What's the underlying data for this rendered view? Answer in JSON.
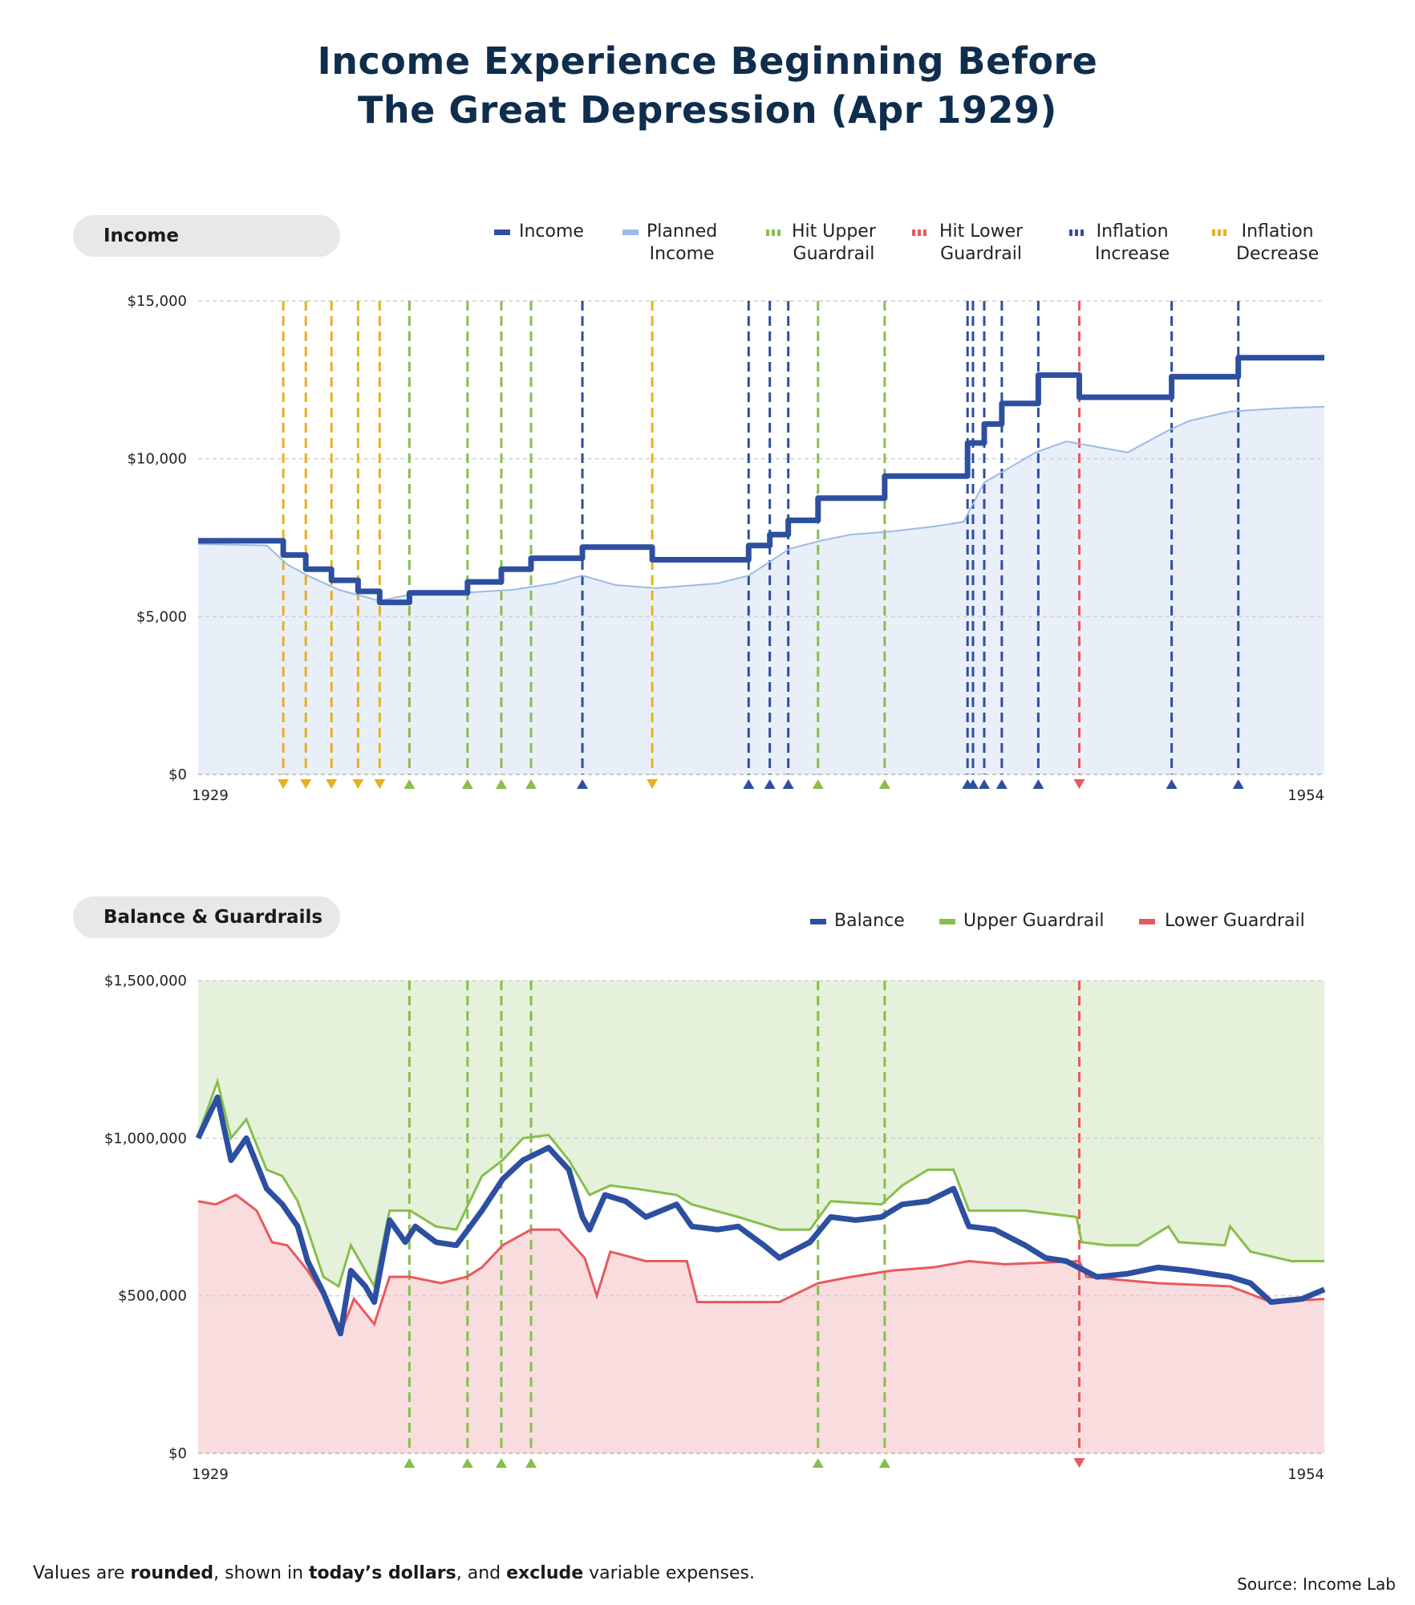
{
  "title_line1": "Income Experience Beginning Before",
  "title_line2": "The Great Depression (Apr 1929)",
  "footnote": {
    "p1": "Values are ",
    "b1": "rounded",
    "p2": ", shown in ",
    "b2": "today’s dollars",
    "p3": ", and ",
    "b3": "exclude",
    "p4": " variable expenses."
  },
  "source": "Source: Income Lab",
  "colors": {
    "income": "#2d4fa0",
    "planned": "#9cbbe4",
    "planned_fill": "#e8eff9",
    "upper": "#86bf4b",
    "lower": "#e8595e",
    "inflation_increase": "#2d4fa0",
    "inflation_decrease": "#e5b11f",
    "upper_zone": "#e5f1db",
    "lower_zone": "#f9dcde"
  },
  "chart_data": [
    {
      "type": "line",
      "panel_label": "Income",
      "legend": [
        "Income",
        "Planned Income",
        "Hit Upper Guardrail",
        "Hit Lower Guardrail",
        "Inflation Increase",
        "Inflation Decrease"
      ],
      "legend_lines": [
        [
          "Income",
          ""
        ],
        [
          "Planned",
          "Income"
        ],
        [
          "Hit Upper",
          "Guardrail"
        ],
        [
          "Hit Lower",
          "Guardrail"
        ],
        [
          "Inflation",
          "Increase"
        ],
        [
          "Inflation",
          "Decrease"
        ]
      ],
      "xlim": [
        1929.25,
        1954.25
      ],
      "x_tick_labels": [
        "1929",
        "1954"
      ],
      "ylim": [
        0,
        15000
      ],
      "y_ticks": [
        0,
        5000,
        10000,
        15000
      ],
      "y_tick_labels": [
        "$0",
        "$5,000",
        "$10,000",
        "$15,000"
      ],
      "grid": true,
      "income_steps": [
        [
          1929.25,
          7400
        ],
        [
          1931.14,
          6950
        ],
        [
          1931.64,
          6500
        ],
        [
          1932.21,
          6150
        ],
        [
          1932.8,
          5800
        ],
        [
          1933.28,
          5450
        ],
        [
          1933.94,
          5750
        ],
        [
          1935.23,
          6100
        ],
        [
          1935.98,
          6500
        ],
        [
          1936.64,
          6850
        ],
        [
          1937.78,
          7200
        ],
        [
          1939.33,
          6800
        ],
        [
          1941.47,
          7250
        ],
        [
          1941.94,
          7600
        ],
        [
          1942.35,
          8050
        ],
        [
          1943.01,
          8750
        ],
        [
          1944.49,
          9450
        ],
        [
          1946.33,
          10500
        ],
        [
          1946.7,
          11100
        ],
        [
          1947.09,
          11750
        ],
        [
          1947.9,
          12650
        ],
        [
          1948.81,
          11950
        ],
        [
          1950.86,
          12600
        ],
        [
          1952.34,
          13200
        ],
        [
          1954.25,
          13200
        ]
      ],
      "planned_income": [
        [
          1929.25,
          7300
        ],
        [
          1930.77,
          7250
        ],
        [
          1931.23,
          6650
        ],
        [
          1931.68,
          6300
        ],
        [
          1932.37,
          5850
        ],
        [
          1933.28,
          5500
        ],
        [
          1933.96,
          5700
        ],
        [
          1935.1,
          5750
        ],
        [
          1936.24,
          5850
        ],
        [
          1937.15,
          6050
        ],
        [
          1937.78,
          6300
        ],
        [
          1938.51,
          6000
        ],
        [
          1939.42,
          5900
        ],
        [
          1940.78,
          6050
        ],
        [
          1941.47,
          6300
        ],
        [
          1942.38,
          7150
        ],
        [
          1943.06,
          7400
        ],
        [
          1943.74,
          7600
        ],
        [
          1944.65,
          7700
        ],
        [
          1945.56,
          7850
        ],
        [
          1946.24,
          8000
        ],
        [
          1946.7,
          9250
        ],
        [
          1947.84,
          10200
        ],
        [
          1948.52,
          10550
        ],
        [
          1949.88,
          10200
        ],
        [
          1950.79,
          10900
        ],
        [
          1951.25,
          11200
        ],
        [
          1952.16,
          11500
        ],
        [
          1953.29,
          11600
        ],
        [
          1954.25,
          11650
        ]
      ],
      "events": {
        "hit_upper_guardrail": [
          1933.94,
          1935.23,
          1935.98,
          1936.64,
          1943.01,
          1944.49
        ],
        "hit_lower_guardrail": [
          1948.81
        ],
        "inflation_increase": [
          1937.78,
          1941.47,
          1941.94,
          1942.35,
          1946.33,
          1946.45,
          1946.7,
          1947.09,
          1947.9,
          1950.86,
          1952.34
        ],
        "inflation_decrease": [
          1931.14,
          1931.64,
          1932.21,
          1932.8,
          1933.28,
          1939.33
        ]
      }
    },
    {
      "type": "line",
      "panel_label": "Balance & Guardrails",
      "legend": [
        "Balance",
        "Upper Guardrail",
        "Lower Guardrail"
      ],
      "xlim": [
        1929.25,
        1954.25
      ],
      "x_tick_labels": [
        "1929",
        "1954"
      ],
      "ylim": [
        0,
        1500000
      ],
      "y_ticks": [
        0,
        500000,
        1000000,
        1500000
      ],
      "y_tick_labels": [
        "$0",
        "$500,000",
        "$1,000,000",
        "$1,500,000"
      ],
      "grid": true,
      "balance": [
        [
          1929.25,
          1000000
        ],
        [
          1929.68,
          1130000
        ],
        [
          1929.98,
          930000
        ],
        [
          1930.32,
          1000000
        ],
        [
          1930.77,
          840000
        ],
        [
          1931.12,
          790000
        ],
        [
          1931.46,
          720000
        ],
        [
          1931.68,
          610000
        ],
        [
          1932.03,
          510000
        ],
        [
          1932.41,
          380000
        ],
        [
          1932.64,
          580000
        ],
        [
          1932.96,
          530000
        ],
        [
          1933.16,
          480000
        ],
        [
          1933.5,
          740000
        ],
        [
          1933.85,
          670000
        ],
        [
          1934.07,
          720000
        ],
        [
          1934.53,
          670000
        ],
        [
          1934.98,
          660000
        ],
        [
          1935.55,
          770000
        ],
        [
          1936.01,
          870000
        ],
        [
          1936.46,
          930000
        ],
        [
          1937.03,
          970000
        ],
        [
          1937.48,
          900000
        ],
        [
          1937.78,
          750000
        ],
        [
          1937.94,
          710000
        ],
        [
          1938.28,
          820000
        ],
        [
          1938.74,
          800000
        ],
        [
          1939.19,
          750000
        ],
        [
          1939.87,
          790000
        ],
        [
          1940.21,
          720000
        ],
        [
          1940.78,
          710000
        ],
        [
          1941.24,
          720000
        ],
        [
          1941.81,
          660000
        ],
        [
          1942.15,
          620000
        ],
        [
          1942.83,
          670000
        ],
        [
          1943.29,
          750000
        ],
        [
          1943.85,
          740000
        ],
        [
          1944.42,
          750000
        ],
        [
          1944.88,
          790000
        ],
        [
          1945.45,
          800000
        ],
        [
          1946.02,
          840000
        ],
        [
          1946.36,
          720000
        ],
        [
          1946.93,
          710000
        ],
        [
          1947.61,
          660000
        ],
        [
          1948.06,
          620000
        ],
        [
          1948.52,
          610000
        ],
        [
          1949.2,
          560000
        ],
        [
          1949.88,
          570000
        ],
        [
          1950.56,
          590000
        ],
        [
          1951.25,
          580000
        ],
        [
          1952.16,
          560000
        ],
        [
          1952.61,
          540000
        ],
        [
          1953.07,
          480000
        ],
        [
          1953.75,
          490000
        ],
        [
          1954.25,
          520000
        ]
      ],
      "upper_guardrail": [
        [
          1929.25,
          1010000
        ],
        [
          1929.68,
          1180000
        ],
        [
          1929.98,
          1000000
        ],
        [
          1930.32,
          1060000
        ],
        [
          1930.77,
          900000
        ],
        [
          1931.12,
          880000
        ],
        [
          1931.46,
          800000
        ],
        [
          1931.68,
          710000
        ],
        [
          1932.03,
          560000
        ],
        [
          1932.37,
          530000
        ],
        [
          1932.64,
          660000
        ],
        [
          1933.16,
          530000
        ],
        [
          1933.5,
          770000
        ],
        [
          1933.96,
          770000
        ],
        [
          1934.53,
          720000
        ],
        [
          1934.98,
          710000
        ],
        [
          1935.55,
          880000
        ],
        [
          1936.01,
          930000
        ],
        [
          1936.46,
          1000000
        ],
        [
          1937.03,
          1010000
        ],
        [
          1937.48,
          930000
        ],
        [
          1937.94,
          820000
        ],
        [
          1938.4,
          850000
        ],
        [
          1938.96,
          840000
        ],
        [
          1939.87,
          820000
        ],
        [
          1940.21,
          790000
        ],
        [
          1941.24,
          750000
        ],
        [
          1942.15,
          710000
        ],
        [
          1942.83,
          710000
        ],
        [
          1943.29,
          800000
        ],
        [
          1944.42,
          790000
        ],
        [
          1944.88,
          850000
        ],
        [
          1945.45,
          900000
        ],
        [
          1946.02,
          900000
        ],
        [
          1946.36,
          770000
        ],
        [
          1946.93,
          770000
        ],
        [
          1947.61,
          770000
        ],
        [
          1948.75,
          750000
        ],
        [
          1948.86,
          670000
        ],
        [
          1949.43,
          660000
        ],
        [
          1950.11,
          660000
        ],
        [
          1950.79,
          720000
        ],
        [
          1951.02,
          670000
        ],
        [
          1952.04,
          660000
        ],
        [
          1952.16,
          720000
        ],
        [
          1952.61,
          640000
        ],
        [
          1953.52,
          610000
        ],
        [
          1954.25,
          610000
        ]
      ],
      "lower_guardrail": [
        [
          1929.25,
          800000
        ],
        [
          1929.64,
          790000
        ],
        [
          1930.09,
          820000
        ],
        [
          1930.55,
          770000
        ],
        [
          1930.89,
          670000
        ],
        [
          1931.23,
          660000
        ],
        [
          1931.68,
          580000
        ],
        [
          1932.03,
          500000
        ],
        [
          1932.41,
          380000
        ],
        [
          1932.71,
          490000
        ],
        [
          1933.16,
          410000
        ],
        [
          1933.5,
          560000
        ],
        [
          1933.96,
          560000
        ],
        [
          1934.64,
          540000
        ],
        [
          1935.21,
          560000
        ],
        [
          1935.55,
          590000
        ],
        [
          1936.01,
          660000
        ],
        [
          1936.64,
          710000
        ],
        [
          1937.26,
          710000
        ],
        [
          1937.83,
          620000
        ],
        [
          1938.1,
          500000
        ],
        [
          1938.4,
          640000
        ],
        [
          1939.19,
          610000
        ],
        [
          1940.1,
          610000
        ],
        [
          1940.33,
          480000
        ],
        [
          1940.78,
          480000
        ],
        [
          1941.47,
          480000
        ],
        [
          1942.15,
          480000
        ],
        [
          1943.01,
          540000
        ],
        [
          1943.74,
          560000
        ],
        [
          1944.65,
          580000
        ],
        [
          1945.56,
          590000
        ],
        [
          1946.36,
          610000
        ],
        [
          1947.15,
          600000
        ],
        [
          1948.81,
          610000
        ],
        [
          1948.97,
          560000
        ],
        [
          1950.56,
          540000
        ],
        [
          1952.16,
          530000
        ],
        [
          1953.07,
          480000
        ],
        [
          1954.25,
          490000
        ]
      ],
      "events": {
        "hit_upper_guardrail": [
          1933.94,
          1935.23,
          1935.98,
          1936.64,
          1943.01,
          1944.49
        ],
        "hit_lower_guardrail": [
          1948.81
        ]
      }
    }
  ]
}
